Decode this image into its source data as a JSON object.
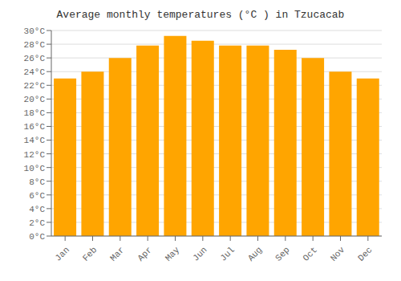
{
  "chart_data": {
    "type": "bar",
    "title": "Average monthly temperatures (°C ) in Tzucacab",
    "categories": [
      "Jan",
      "Feb",
      "Mar",
      "Apr",
      "May",
      "Jun",
      "Jul",
      "Aug",
      "Sep",
      "Oct",
      "Nov",
      "Dec"
    ],
    "values": [
      23.0,
      24.0,
      26.0,
      27.8,
      29.2,
      28.5,
      27.8,
      27.8,
      27.2,
      26.0,
      24.0,
      23.0
    ],
    "color": "#FFA500",
    "ylim": [
      0,
      30
    ],
    "yticks": [
      {
        "value": 0,
        "label": "0°C"
      },
      {
        "value": 2,
        "label": "2°C"
      },
      {
        "value": 4,
        "label": "4°C"
      },
      {
        "value": 6,
        "label": "6°C"
      },
      {
        "value": 8,
        "label": "8°C"
      },
      {
        "value": 10,
        "label": "10°C"
      },
      {
        "value": 12,
        "label": "12°C"
      },
      {
        "value": 14,
        "label": "14°C"
      },
      {
        "value": 16,
        "label": "16°C"
      },
      {
        "value": 18,
        "label": "18°C"
      },
      {
        "value": 20,
        "label": "20°C"
      },
      {
        "value": 22,
        "label": "22°C"
      },
      {
        "value": 24,
        "label": "24°C"
      },
      {
        "value": 26,
        "label": "26°C"
      },
      {
        "value": 28,
        "label": "28°C"
      },
      {
        "value": 30,
        "label": "30°C"
      }
    ],
    "grid": true
  }
}
